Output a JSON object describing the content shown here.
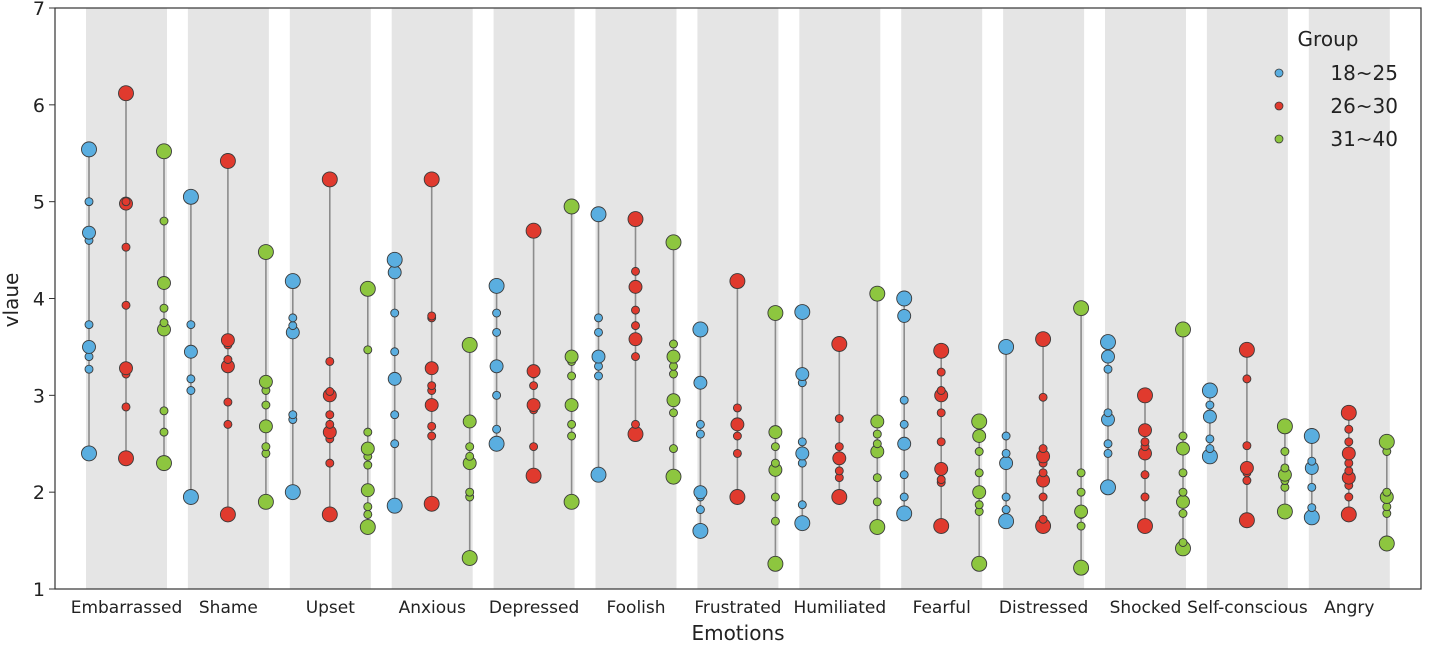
{
  "chart_data": {
    "type": "scatter",
    "title": "",
    "xlabel": "Emotions",
    "ylabel": "vlaue",
    "ylim": [
      1,
      7
    ],
    "yticks": [
      1,
      2,
      3,
      4,
      5,
      6,
      7
    ],
    "grid": false,
    "legend": {
      "title": "Group",
      "placement": "top-right"
    },
    "categories": [
      "Embarrassed",
      "Shame",
      "Upset",
      "Anxious",
      "Depressed",
      "Foolish",
      "Frustrated",
      "Humiliated",
      "Fearful",
      "Distressed",
      "Shocked",
      "Self-conscious",
      "Angry"
    ],
    "series": [
      {
        "name": "18~25",
        "color": "#5aaee0",
        "values": [
          [
            2.4,
            3.27,
            3.4,
            3.5,
            3.73,
            4.6,
            4.68,
            5.0,
            5.54
          ],
          [
            1.95,
            3.05,
            3.17,
            3.45,
            3.73,
            5.05
          ],
          [
            2.0,
            2.75,
            2.8,
            3.65,
            3.72,
            3.8,
            4.18
          ],
          [
            1.86,
            2.5,
            2.8,
            3.17,
            3.45,
            3.85,
            4.27,
            4.4
          ],
          [
            2.5,
            2.65,
            3.0,
            3.3,
            3.65,
            3.85,
            4.13
          ],
          [
            2.18,
            3.2,
            3.3,
            3.4,
            3.65,
            3.8,
            4.87
          ],
          [
            1.6,
            1.82,
            1.95,
            2.0,
            2.6,
            2.7,
            3.13,
            3.68
          ],
          [
            1.68,
            1.87,
            2.3,
            2.4,
            2.52,
            3.13,
            3.22,
            3.86
          ],
          [
            1.78,
            1.95,
            2.18,
            2.5,
            2.7,
            2.95,
            3.82,
            4.0
          ],
          [
            1.7,
            1.82,
            1.95,
            2.3,
            2.4,
            2.58,
            3.5
          ],
          [
            2.05,
            2.4,
            2.5,
            2.75,
            2.82,
            3.27,
            3.4,
            3.55
          ],
          [
            2.37,
            2.45,
            2.55,
            2.78,
            2.9,
            3.05
          ],
          [
            1.74,
            1.84,
            2.05,
            2.25,
            2.32,
            2.58
          ]
        ]
      },
      {
        "name": "26~30",
        "color": "#e03a2e",
        "values": [
          [
            2.35,
            2.88,
            3.22,
            3.28,
            3.93,
            4.53,
            4.98,
            5.0,
            6.12
          ],
          [
            1.77,
            2.7,
            2.93,
            3.3,
            3.37,
            3.52,
            3.57,
            5.42
          ],
          [
            1.77,
            2.3,
            2.55,
            2.62,
            2.7,
            2.8,
            3.0,
            3.04,
            3.35,
            5.23
          ],
          [
            1.88,
            2.58,
            2.68,
            2.9,
            3.05,
            3.1,
            3.28,
            3.8,
            3.82,
            5.23
          ],
          [
            2.17,
            2.47,
            2.85,
            2.9,
            3.1,
            3.22,
            3.25,
            4.7
          ],
          [
            2.6,
            2.7,
            3.4,
            3.58,
            3.72,
            3.88,
            4.12,
            4.28,
            4.82
          ],
          [
            1.95,
            2.4,
            2.58,
            2.7,
            2.87,
            4.18
          ],
          [
            1.95,
            2.15,
            2.22,
            2.35,
            2.47,
            2.76,
            3.53
          ],
          [
            1.65,
            2.1,
            2.13,
            2.24,
            2.52,
            2.82,
            3.0,
            3.05,
            3.24,
            3.46
          ],
          [
            1.65,
            1.72,
            1.95,
            2.12,
            2.2,
            2.3,
            2.37,
            2.45,
            2.98,
            3.58
          ],
          [
            1.65,
            1.95,
            2.18,
            2.4,
            2.47,
            2.52,
            2.64,
            3.0
          ],
          [
            1.71,
            2.12,
            2.2,
            2.25,
            2.48,
            3.17,
            3.47
          ],
          [
            1.77,
            1.95,
            2.07,
            2.15,
            2.22,
            2.3,
            2.4,
            2.52,
            2.65,
            2.82
          ]
        ]
      },
      {
        "name": "31~40",
        "color": "#8dc63f",
        "values": [
          [
            2.3,
            2.62,
            2.84,
            3.68,
            3.75,
            3.9,
            4.16,
            4.8,
            5.52
          ],
          [
            1.9,
            2.4,
            2.47,
            2.68,
            2.9,
            3.05,
            3.14,
            4.48
          ],
          [
            1.64,
            1.77,
            1.85,
            2.02,
            2.28,
            2.37,
            2.45,
            2.62,
            3.47,
            4.1
          ],
          [
            1.32,
            1.95,
            2.0,
            2.3,
            2.37,
            2.47,
            2.73,
            3.52
          ],
          [
            1.9,
            2.58,
            2.7,
            2.9,
            3.2,
            3.35,
            3.4,
            4.95
          ],
          [
            2.16,
            2.45,
            2.82,
            2.95,
            3.22,
            3.3,
            3.4,
            3.53,
            4.58
          ],
          [
            1.26,
            1.7,
            1.95,
            2.23,
            2.3,
            2.47,
            2.62,
            3.85
          ],
          [
            1.64,
            1.9,
            2.15,
            2.42,
            2.5,
            2.6,
            2.73,
            4.05
          ],
          [
            1.26,
            1.8,
            1.87,
            2.0,
            2.2,
            2.42,
            2.58,
            2.73
          ],
          [
            1.22,
            1.65,
            1.77,
            1.8,
            2.0,
            2.2,
            3.9
          ],
          [
            1.42,
            1.48,
            1.78,
            1.9,
            2.0,
            2.2,
            2.45,
            2.58,
            3.68
          ],
          [
            1.8,
            2.05,
            2.12,
            2.18,
            2.25,
            2.42,
            2.68
          ],
          [
            1.47,
            1.78,
            1.85,
            1.95,
            2.0,
            2.42,
            2.52
          ]
        ]
      }
    ]
  }
}
